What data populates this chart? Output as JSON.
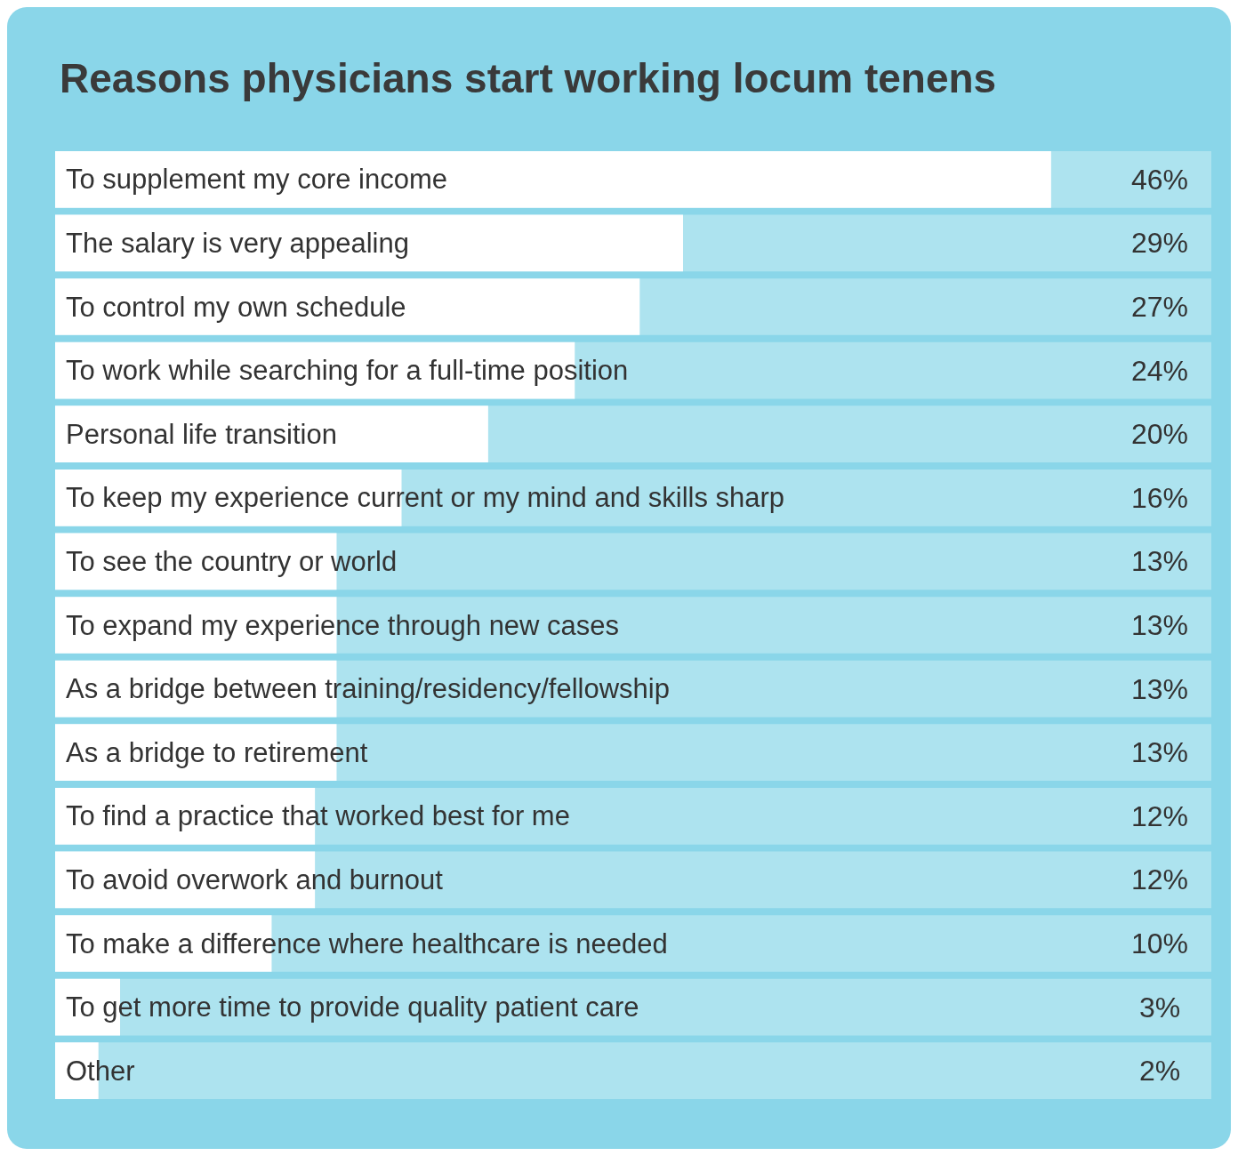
{
  "chart_data": {
    "type": "bar",
    "orientation": "horizontal",
    "title": "Reasons physicians start working locum tenens",
    "categories": [
      "To supplement my core income",
      "The salary is very appealing",
      "To control my own schedule",
      "To work while searching for a full-time position",
      "Personal life transition",
      "To keep my experience current or my mind and skills sharp",
      "To see the country or world",
      "To expand my experience through new cases",
      "As a bridge between training/residency/fellowship",
      "As a bridge to retirement",
      "To find a practice that worked best for me",
      "To avoid overwork and burnout",
      "To make a difference where healthcare is needed",
      "To get more time to provide quality patient care",
      "Other"
    ],
    "values": [
      46,
      29,
      27,
      24,
      20,
      16,
      13,
      13,
      13,
      13,
      12,
      12,
      10,
      3,
      2
    ],
    "value_labels": [
      "46%",
      "29%",
      "27%",
      "24%",
      "20%",
      "16%",
      "13%",
      "13%",
      "13%",
      "13%",
      "12%",
      "12%",
      "10%",
      "3%",
      "2%"
    ],
    "color": "#ffffff",
    "xlim": [
      0,
      53.4
    ]
  }
}
